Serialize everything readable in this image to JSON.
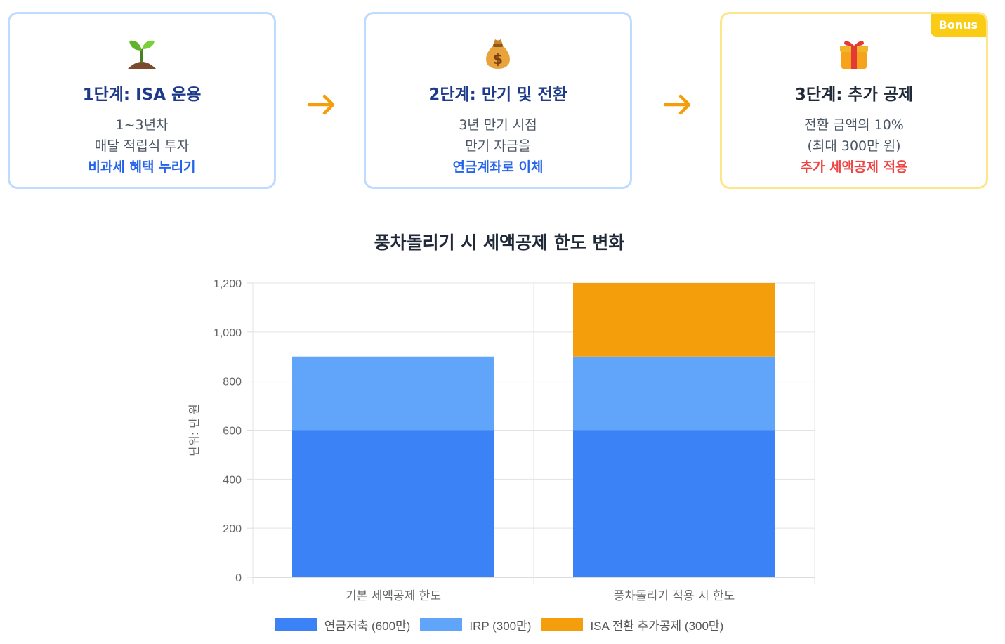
{
  "steps": [
    {
      "title": "1단계: ISA 운용",
      "line1": "1~3년차",
      "line2": "매달 적립식 투자",
      "line3": "비과세 혜택 누리기",
      "icon": "seedling-icon"
    },
    {
      "title": "2단계: 만기 및 전환",
      "line1": "3년 만기 시점",
      "line2": "만기 자금을",
      "line3": "연금계좌로 이체",
      "icon": "money-bag-icon"
    },
    {
      "title": "3단계: 추가 공제",
      "line1": "전환 금액의 10%",
      "line2": "(최대 300만 원)",
      "line3": "추가 세액공제 적용",
      "icon": "gift-icon",
      "badge": "Bonus"
    }
  ],
  "colors": {
    "blue_dark": "#3b82f6",
    "blue_light": "#60a5fa",
    "orange": "#f59e0b",
    "arrow": "#f59e0b",
    "badge": "#facc15"
  },
  "chart_data": {
    "type": "bar",
    "stacked": true,
    "title": "풍차돌리기 시 세액공제 한도 변화",
    "ylabel": "단위: 만 원",
    "xlabel": "",
    "categories": [
      "기본 세액공제 한도",
      "풍차돌리기 적용 시 한도"
    ],
    "ylim": [
      0,
      1200
    ],
    "yticks": [
      "0",
      "200",
      "400",
      "600",
      "800",
      "1,000",
      "1,200"
    ],
    "grid": true,
    "legend_position": "bottom",
    "series": [
      {
        "name": "연금저축 (600만)",
        "values": [
          600,
          600
        ],
        "color": "#3b82f6"
      },
      {
        "name": "IRP (300만)",
        "values": [
          300,
          300
        ],
        "color": "#60a5fa"
      },
      {
        "name": "ISA 전환 추가공제 (300만)",
        "values": [
          0,
          300
        ],
        "color": "#f59e0b"
      }
    ]
  }
}
